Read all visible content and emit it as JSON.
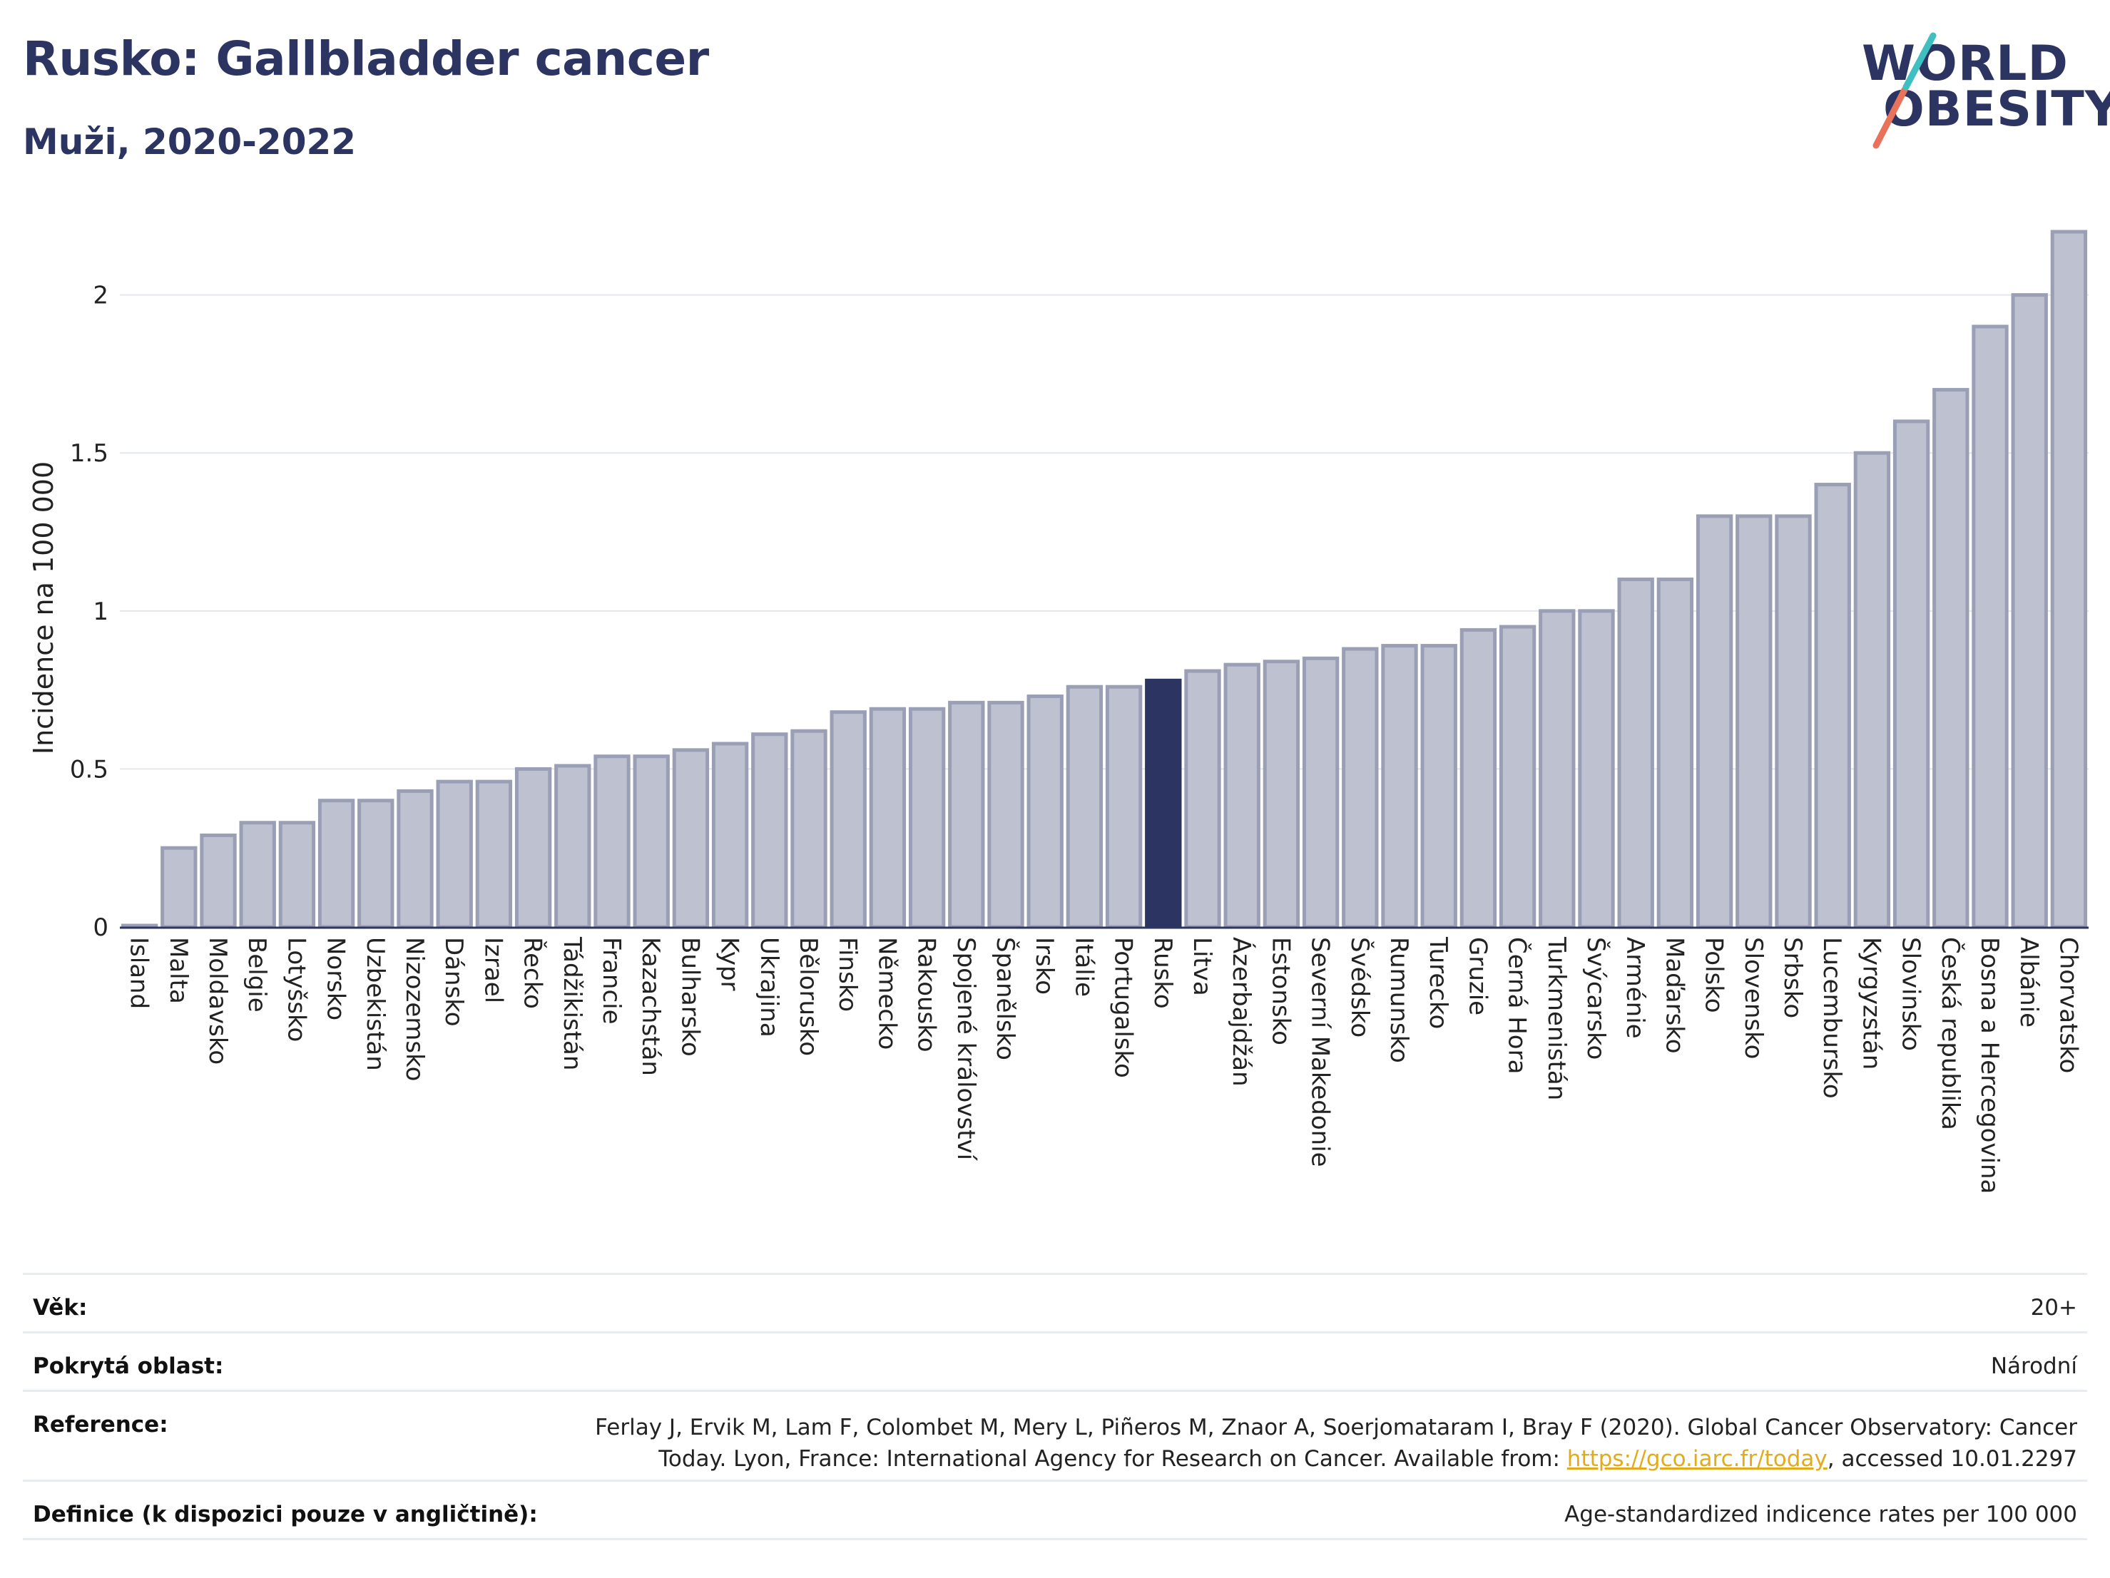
{
  "header": {
    "title": "Rusko: Gallbladder cancer",
    "subtitle": "Muži, 2020-2022",
    "logo_line1": "WORLD",
    "logo_line2": "OBESITY"
  },
  "chart_data": {
    "type": "bar",
    "ylabel": "Incidence na 100 000",
    "ylim": [
      0,
      2.2
    ],
    "yticks": [
      0,
      0.5,
      1,
      1.5,
      2
    ],
    "ytick_labels": [
      "0",
      "0.5",
      "1",
      "1.5",
      "2"
    ],
    "grid": true,
    "highlight": "Rusko",
    "colors": {
      "bar": "#bdc1d0",
      "bar_edge": "#9a9fb6",
      "highlight": "#2c3461",
      "grid": "#e3e7ec",
      "axis": "#2c3461"
    },
    "categories": [
      "Island",
      "Malta",
      "Moldavsko",
      "Belgie",
      "Lotyšsko",
      "Norsko",
      "Uzbekistán",
      "Nizozemsko",
      "Dánsko",
      "Izrael",
      "Řecko",
      "Tádžikistán",
      "Francie",
      "Kazachstán",
      "Bulharsko",
      "Kypr",
      "Ukrajina",
      "Bělorusko",
      "Finsko",
      "Německo",
      "Rakousko",
      "Spojené království",
      "Španělsko",
      "Irsko",
      "Itálie",
      "Portugalsko",
      "Rusko",
      "Litva",
      "Ázerbajdžán",
      "Estonsko",
      "Severní Makedonie",
      "Švédsko",
      "Rumunsko",
      "Turecko",
      "Gruzie",
      "Černá Hora",
      "Turkmenistán",
      "Švýcarsko",
      "Arménie",
      "Maďarsko",
      "Polsko",
      "Slovensko",
      "Srbsko",
      "Lucembursko",
      "Kyrgyzstán",
      "Slovinsko",
      "Česká republika",
      "Bosna a Hercegovina",
      "Albánie",
      "Chorvatsko"
    ],
    "values": [
      0.0,
      0.25,
      0.29,
      0.33,
      0.33,
      0.4,
      0.4,
      0.43,
      0.46,
      0.46,
      0.5,
      0.51,
      0.54,
      0.54,
      0.56,
      0.58,
      0.61,
      0.62,
      0.68,
      0.69,
      0.69,
      0.71,
      0.71,
      0.73,
      0.76,
      0.76,
      0.78,
      0.81,
      0.83,
      0.84,
      0.85,
      0.88,
      0.89,
      0.89,
      0.94,
      0.95,
      1.0,
      1.0,
      1.1,
      1.1,
      1.3,
      1.3,
      1.3,
      1.4,
      1.5,
      1.6,
      1.7,
      1.9,
      2.0,
      2.2
    ]
  },
  "meta": {
    "age_label": "Věk:",
    "age_value": "20+",
    "area_label": "Pokrytá oblast:",
    "area_value": "Národní",
    "reference_label": "Reference:",
    "reference_line1": "Ferlay J, Ervik M, Lam F, Colombet M, Mery L, Piñeros M, Znaor A, Soerjomataram I, Bray F (2020). Global Cancer Observatory: Cancer",
    "reference_line2_pre": "Today. Lyon, France: International Agency for Research on Cancer. Available from: ",
    "reference_link": "https://gco.iarc.fr/today",
    "reference_line2_post": ", accessed 10.01.2297",
    "definition_label": "Definice (k dispozici pouze v angličtině):",
    "definition_value": "Age-standardized indicence rates per 100 000"
  }
}
